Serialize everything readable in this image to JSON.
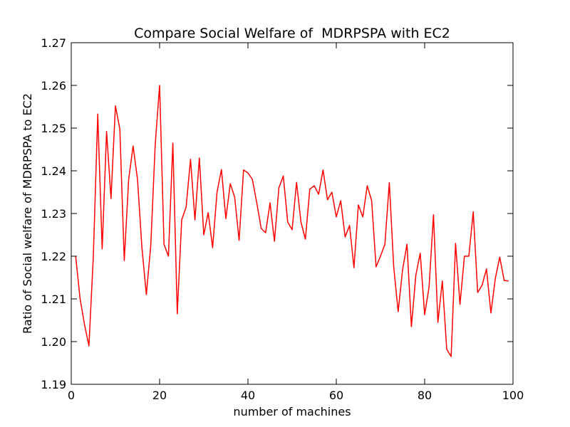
{
  "chart_data": {
    "type": "line",
    "title": "Compare Social Welfare of  MDRPSPA with EC2",
    "xlabel": "number of machines",
    "ylabel": "Ratio of Social welfare of MDRPSPA to EC2",
    "xlim": [
      0,
      100
    ],
    "ylim": [
      1.19,
      1.27
    ],
    "xticks": [
      "0",
      "20",
      "40",
      "60",
      "80",
      "100"
    ],
    "yticks": [
      "1.19",
      "1.20",
      "1.21",
      "1.22",
      "1.23",
      "1.24",
      "1.25",
      "1.26",
      "1.27"
    ],
    "grid": false,
    "series_color": "#ff0000",
    "series": [
      {
        "x": [
          1,
          2,
          3,
          4,
          5,
          6,
          7,
          8,
          9,
          10,
          11,
          12,
          13,
          14,
          15,
          16,
          17,
          18,
          19,
          20,
          21,
          22,
          23,
          24,
          25,
          26,
          27,
          28,
          29,
          30,
          31,
          32,
          33,
          34,
          35,
          36,
          37,
          38,
          39,
          40,
          41,
          42,
          43,
          44,
          45,
          46,
          47,
          48,
          49,
          50,
          51,
          52,
          53,
          54,
          55,
          56,
          57,
          58,
          59,
          60,
          61,
          62,
          63,
          64,
          65,
          66,
          67,
          68,
          69,
          70,
          71,
          72,
          73,
          74,
          75,
          76,
          77,
          78,
          79,
          80,
          81,
          82,
          83,
          84,
          85,
          86,
          87,
          88,
          89,
          90,
          91,
          92,
          93,
          94,
          95,
          96,
          97,
          98,
          99
        ],
        "values": [
          1.22,
          1.21,
          1.204,
          1.199,
          1.22,
          1.2533,
          1.2217,
          1.2492,
          1.2335,
          1.2552,
          1.2498,
          1.219,
          1.238,
          1.2458,
          1.238,
          1.222,
          1.211,
          1.2225,
          1.246,
          1.26,
          1.2228,
          1.22,
          1.2465,
          1.2065,
          1.2285,
          1.2315,
          1.2427,
          1.2285,
          1.243,
          1.225,
          1.2302,
          1.222,
          1.235,
          1.2403,
          1.2288,
          1.237,
          1.2338,
          1.2237,
          1.2402,
          1.2395,
          1.238,
          1.2325,
          1.2265,
          1.2255,
          1.2325,
          1.2235,
          1.236,
          1.2388,
          1.228,
          1.2262,
          1.2373,
          1.228,
          1.224,
          1.2357,
          1.2365,
          1.2345,
          1.2402,
          1.2332,
          1.235,
          1.2292,
          1.233,
          1.2245,
          1.2272,
          1.2173,
          1.232,
          1.2292,
          1.2365,
          1.233,
          1.2175,
          1.22,
          1.2228,
          1.2372,
          1.2175,
          1.207,
          1.2168,
          1.2228,
          1.2035,
          1.2155,
          1.2207,
          1.2063,
          1.2128,
          1.2297,
          1.2045,
          1.2142,
          1.1982,
          1.1965,
          1.223,
          1.2087,
          1.22,
          1.22,
          1.2304,
          1.2115,
          1.2132,
          1.217,
          1.2067,
          1.2148,
          1.2198,
          1.2143,
          1.2142
        ]
      }
    ]
  }
}
